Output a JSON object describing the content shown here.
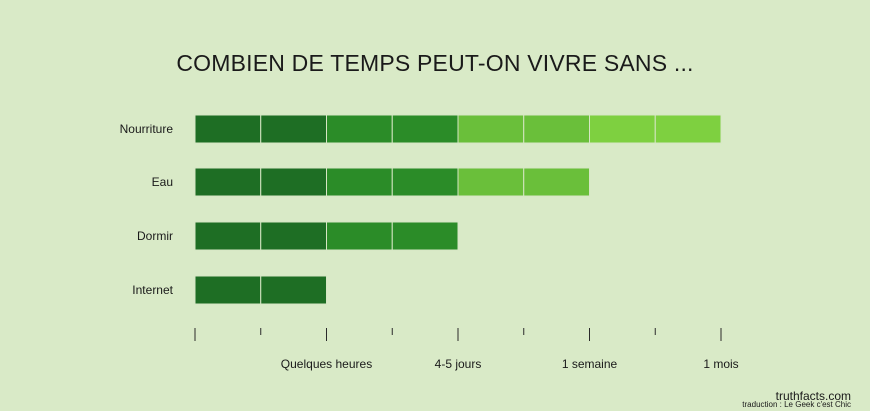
{
  "chart_data": {
    "type": "bar",
    "orientation": "horizontal",
    "stacked": true,
    "title": "COMBIEN DE TEMPS PEUT-ON VIVRE SANS ...",
    "xlabel": "",
    "ylabel": "",
    "categories": [
      "Nourriture",
      "Eau",
      "Dormir",
      "Internet"
    ],
    "values": [
      8,
      6,
      4,
      2
    ],
    "xlim": [
      0,
      8
    ],
    "x_ticks": [
      0,
      1,
      2,
      3,
      4,
      5,
      6,
      7,
      8
    ],
    "x_tick_labels": [
      {
        "at": 2,
        "label": "Quelques heures"
      },
      {
        "at": 4,
        "label": "4-5 jours"
      },
      {
        "at": 6,
        "label": "1 semaine"
      },
      {
        "at": 8,
        "label": "1 mois"
      }
    ],
    "segment_colors": [
      "#1e6e24",
      "#2b8c28",
      "#6abf3a",
      "#7ed040"
    ],
    "background": "#d9eac7",
    "grid": false,
    "legend": "none"
  },
  "credits": {
    "source": "truthfacts.com",
    "translation": "traduction : Le Geek c'est Chic"
  }
}
